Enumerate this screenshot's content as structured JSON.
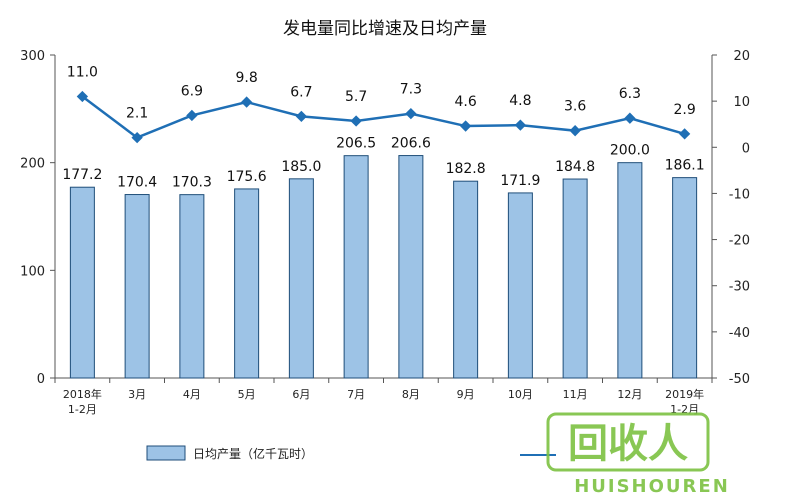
{
  "chart_data": {
    "type": "bar",
    "title": "发电量同比增速及日均产量",
    "categories": [
      [
        "2018年",
        "1-2月"
      ],
      [
        "3月"
      ],
      [
        "4月"
      ],
      [
        "5月"
      ],
      [
        "6月"
      ],
      [
        "7月"
      ],
      [
        "8月"
      ],
      [
        "9月"
      ],
      [
        "10月"
      ],
      [
        "11月"
      ],
      [
        "12月"
      ],
      [
        "2019年",
        "1-2月"
      ]
    ],
    "series": [
      {
        "name": "日均产量（亿千瓦时）",
        "type": "bar",
        "axis": "left",
        "color": "#9DC3E6",
        "values": [
          177.2,
          170.4,
          170.3,
          175.6,
          185.0,
          206.5,
          206.6,
          182.8,
          171.9,
          184.8,
          200.0,
          186.1
        ],
        "labels": [
          "177.2",
          "170.4",
          "170.3",
          "175.6",
          "185.0",
          "206.5",
          "206.6",
          "182.8",
          "171.9",
          "184.8",
          "200.0",
          "186.1"
        ]
      },
      {
        "type": "line",
        "axis": "right",
        "color": "#1F6FB5",
        "values": [
          11.0,
          2.1,
          6.9,
          9.8,
          6.7,
          5.7,
          7.3,
          4.6,
          4.8,
          3.6,
          6.3,
          2.9
        ],
        "labels": [
          "11.0",
          "2.1",
          "6.9",
          "9.8",
          "6.7",
          "5.7",
          "7.3",
          "4.6",
          "4.8",
          "3.6",
          "6.3",
          "2.9"
        ]
      }
    ],
    "y_left": {
      "range": [
        0,
        300
      ],
      "ticks": [
        "0",
        "100",
        "200",
        "300"
      ]
    },
    "y_right": {
      "range": [
        -50,
        20
      ],
      "ticks": [
        "20",
        "10",
        "0",
        "-10",
        "-20",
        "-30",
        "-40",
        "-50"
      ]
    },
    "grid": false,
    "legend": {
      "position": "bottom"
    }
  },
  "watermark": {
    "brand": "回收人",
    "latin": "HUISHOUREN",
    "color": "#7DC242"
  }
}
